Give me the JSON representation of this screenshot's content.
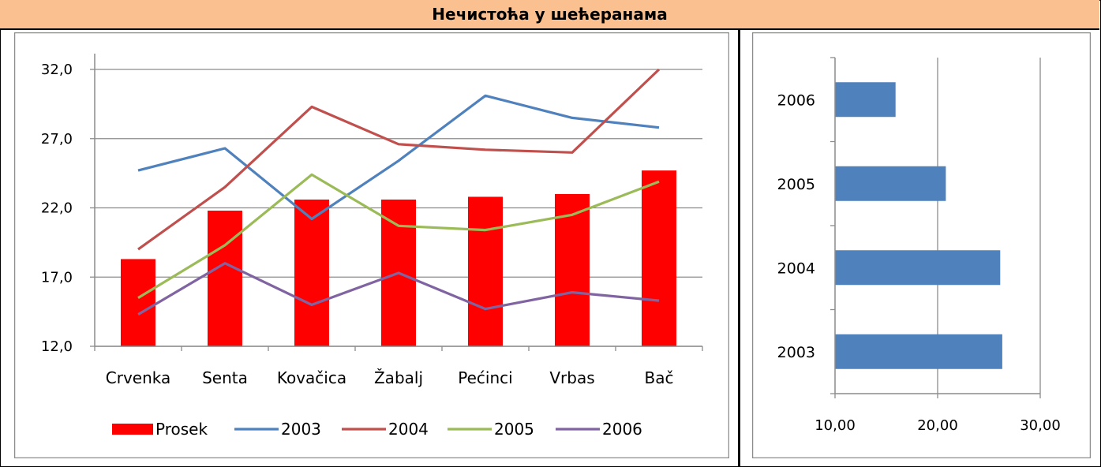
{
  "title": "Нечистоћа у шећеранама",
  "chart_data": [
    {
      "type": "bar+line",
      "categories": [
        "Crvenka",
        "Senta",
        "Kovačica",
        "Žabalj",
        "Pećinci",
        "Vrbas",
        "Bač"
      ],
      "ylim": [
        12,
        32
      ],
      "yticks": [
        "12,0",
        "17,0",
        "22,0",
        "27,0",
        "32,0"
      ],
      "ytick_values": [
        12,
        17,
        22,
        27,
        32
      ],
      "grid": true,
      "legend_position": "bottom",
      "series": [
        {
          "name": "Prosek",
          "kind": "bar",
          "color": "#FF0000",
          "values": [
            18.3,
            21.8,
            22.6,
            22.6,
            22.8,
            23.0,
            24.7
          ]
        },
        {
          "name": "2003",
          "kind": "line",
          "color": "#4F81BD",
          "values": [
            24.7,
            26.3,
            21.2,
            25.4,
            30.1,
            28.5,
            27.8
          ]
        },
        {
          "name": "2004",
          "kind": "line",
          "color": "#C0504D",
          "values": [
            19.0,
            23.5,
            29.3,
            26.6,
            26.2,
            26.0,
            32.0
          ]
        },
        {
          "name": "2005",
          "kind": "line",
          "color": "#9BBB59",
          "values": [
            15.5,
            19.3,
            24.4,
            20.7,
            20.4,
            21.5,
            23.9
          ]
        },
        {
          "name": "2006",
          "kind": "line",
          "color": "#8064A2",
          "values": [
            14.3,
            18.0,
            15.0,
            17.3,
            14.7,
            15.9,
            15.3
          ]
        }
      ]
    },
    {
      "type": "bar",
      "orientation": "horizontal",
      "categories": [
        "2006",
        "2005",
        "2004",
        "2003"
      ],
      "values": [
        15.9,
        20.8,
        26.1,
        26.3
      ],
      "color": "#4F81BD",
      "xlim": [
        10,
        30
      ],
      "xticks": [
        "10,00",
        "20,00",
        "30,00"
      ],
      "xtick_values": [
        10,
        20,
        30
      ],
      "grid": true
    }
  ]
}
